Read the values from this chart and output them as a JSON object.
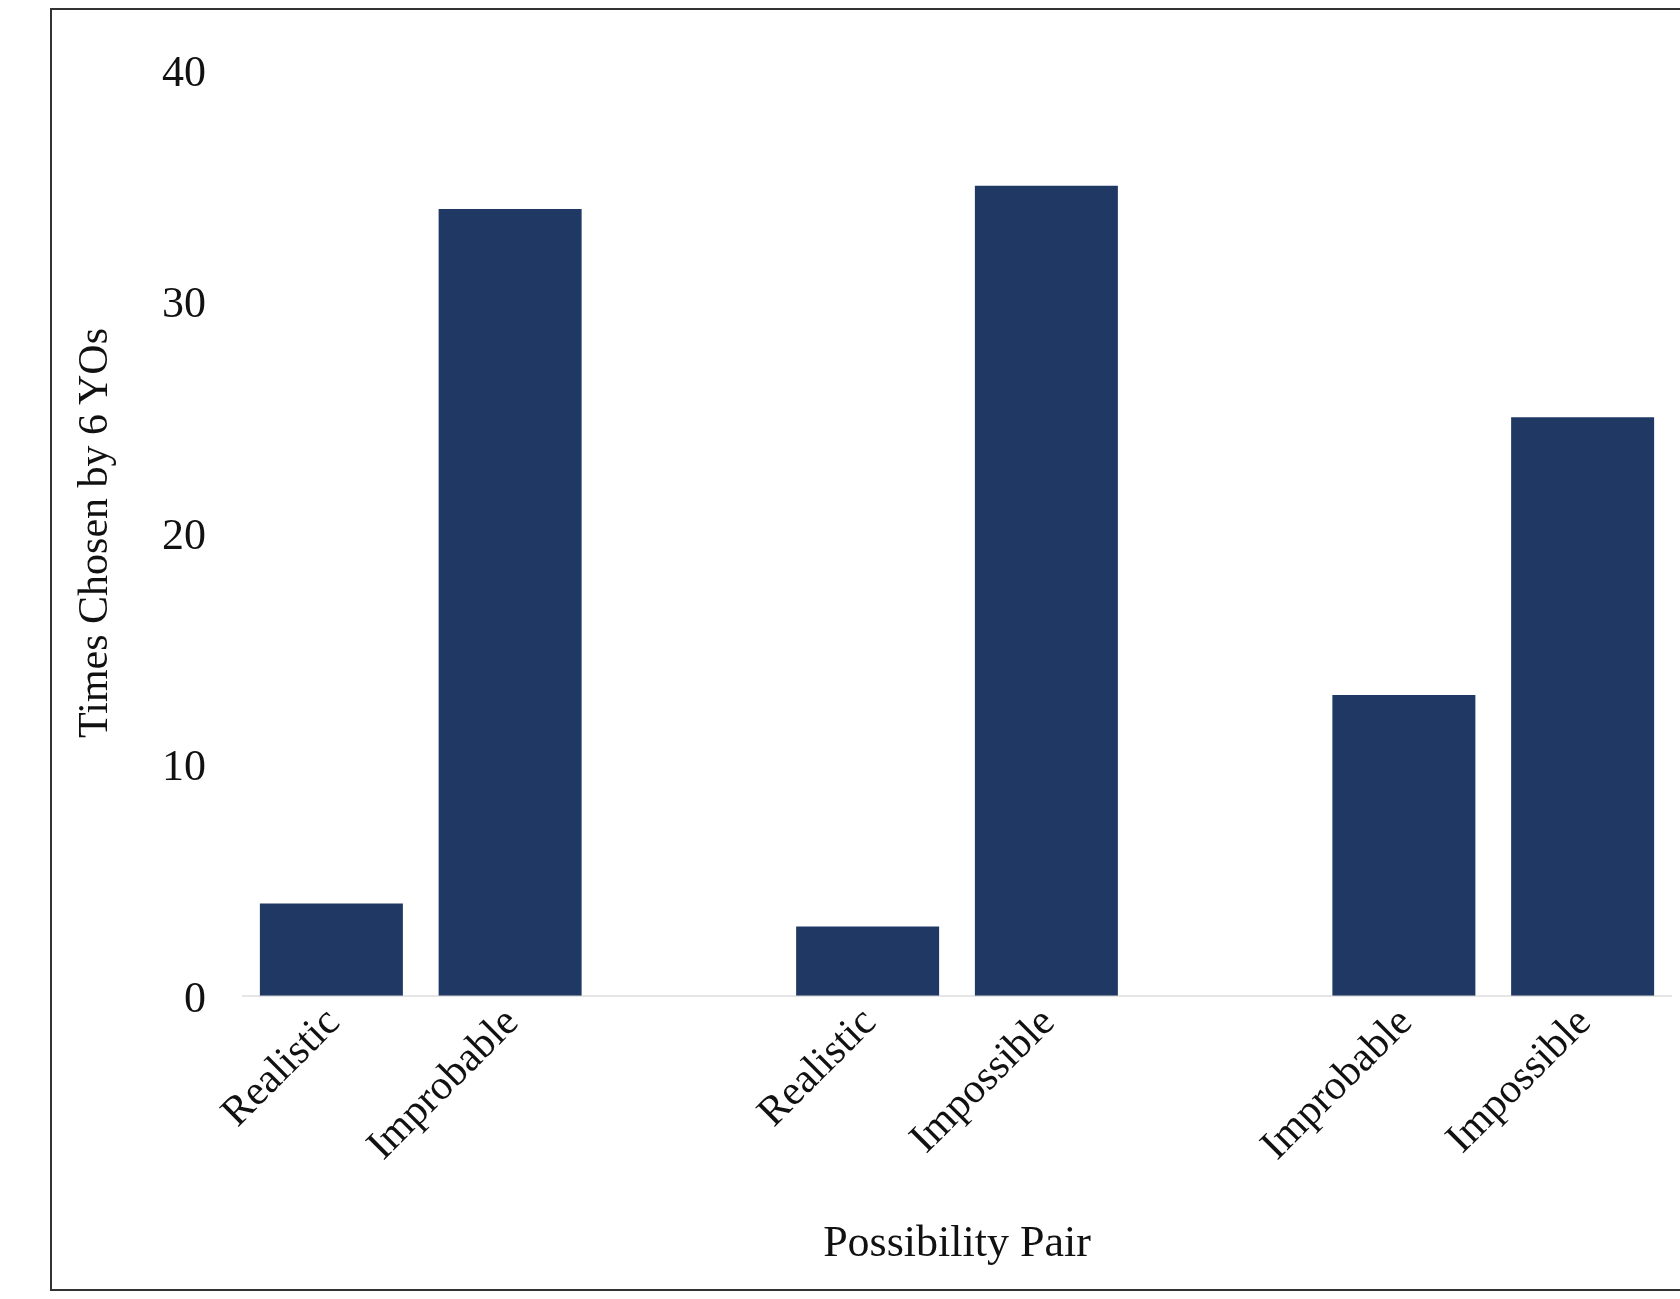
{
  "chart_data": {
    "type": "bar",
    "xlabel": "Possibility Pair",
    "ylabel": "Times Chosen by 6 YOs",
    "categories": [
      "Realistic",
      "Improbable",
      null,
      "Realistic",
      "Impossible",
      null,
      "Improbable",
      "Impossible"
    ],
    "values": [
      4,
      34,
      null,
      3,
      35,
      null,
      13,
      25
    ],
    "color": "#203864",
    "ylim": [
      0,
      40
    ],
    "yticks": [
      0,
      10,
      20,
      30,
      40
    ],
    "grid": false,
    "legend": false
  }
}
